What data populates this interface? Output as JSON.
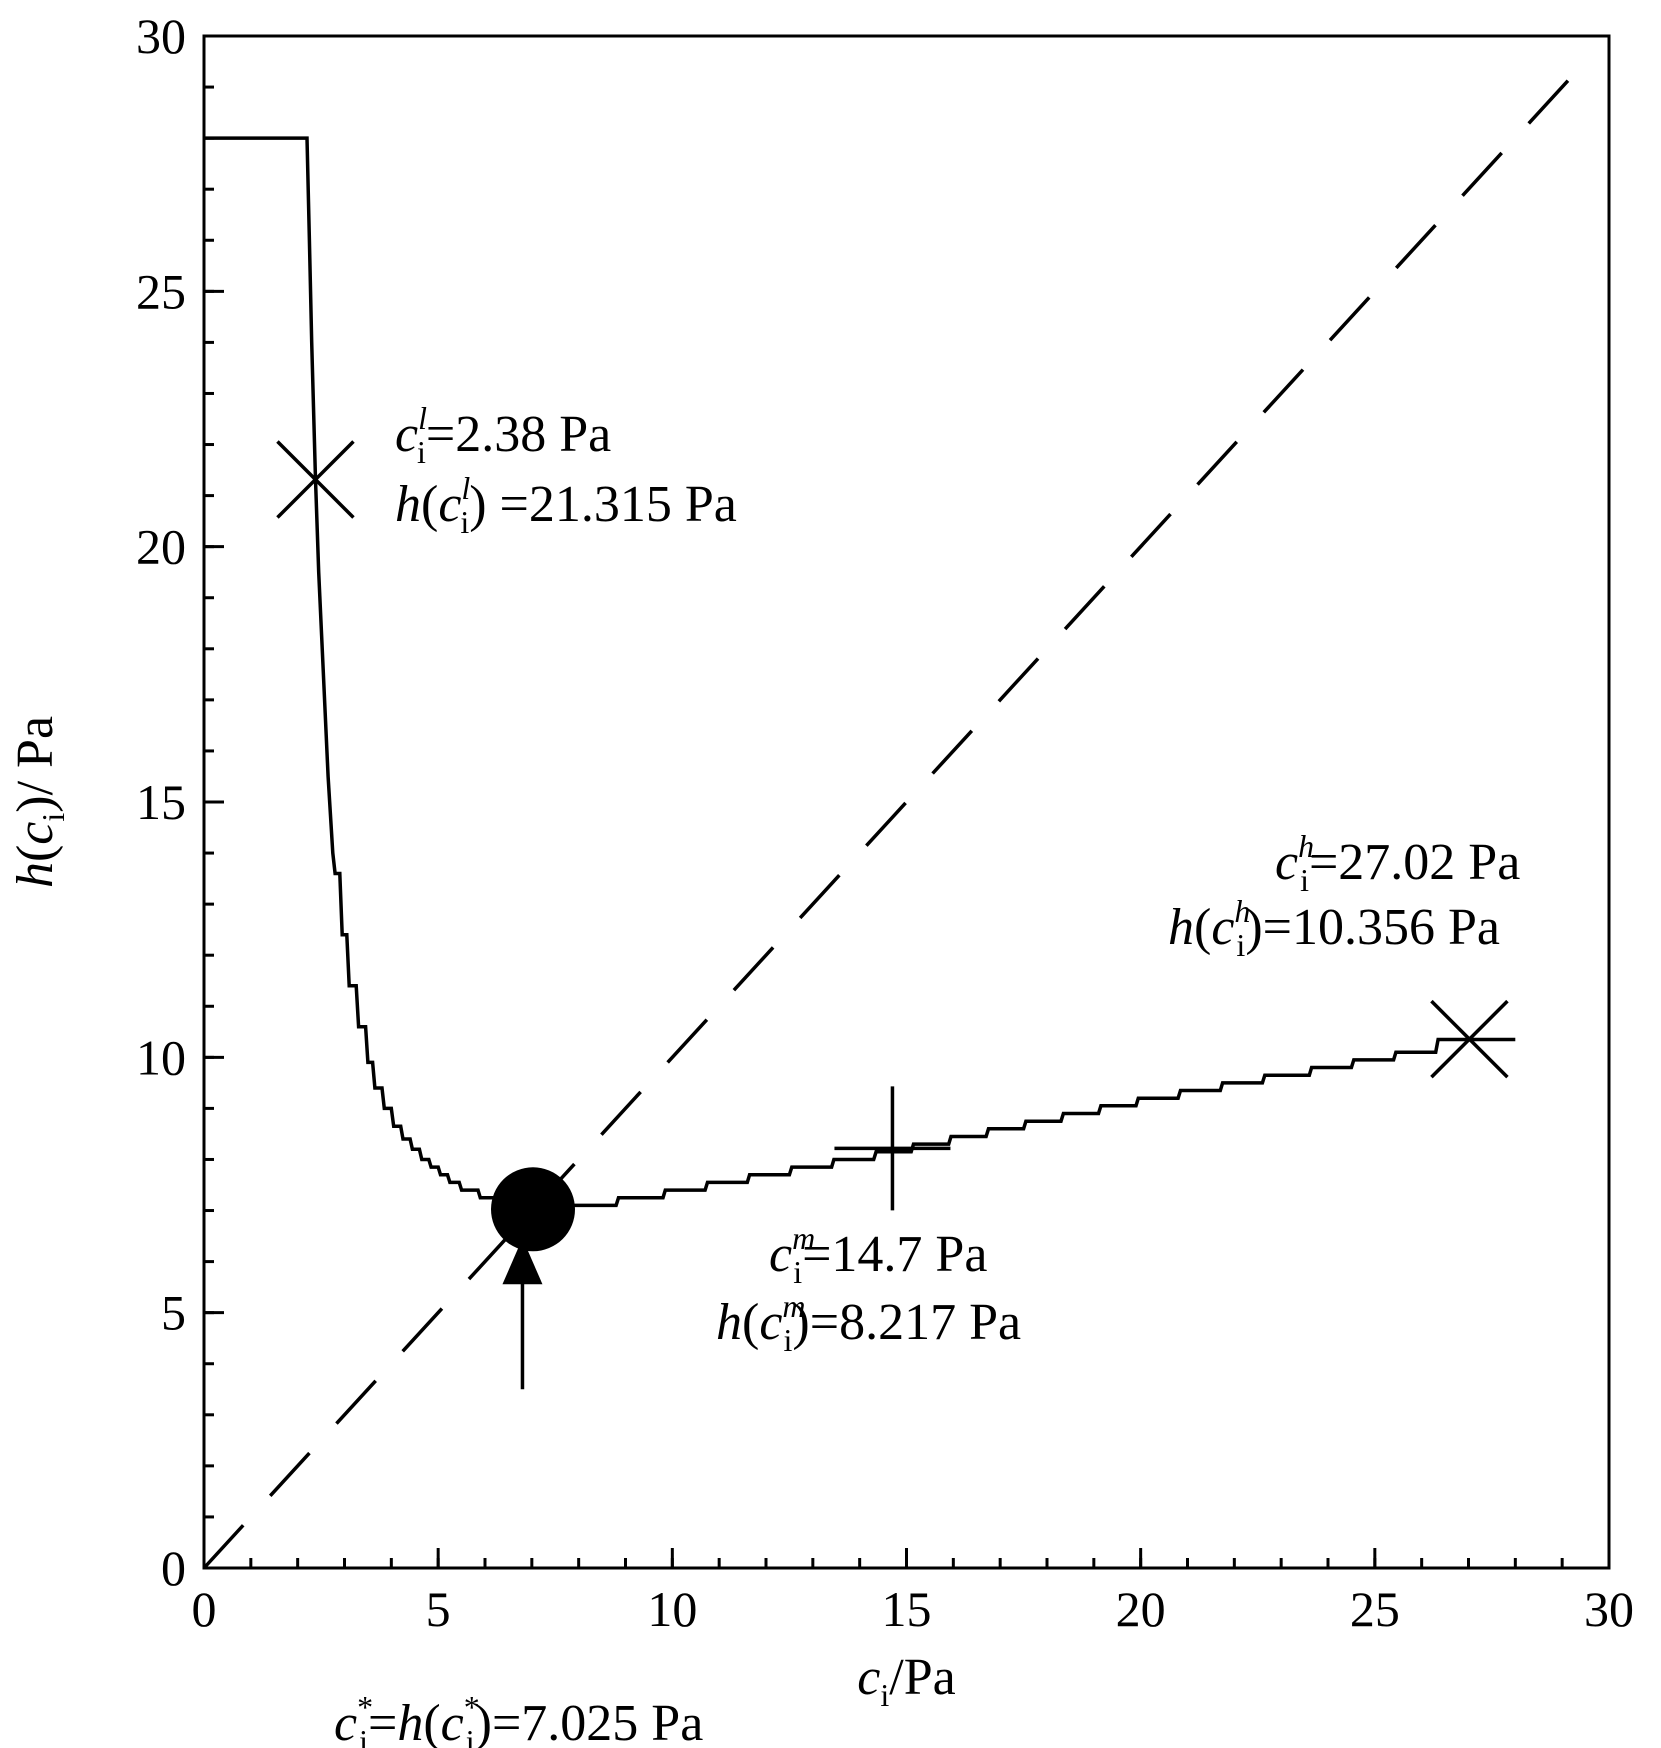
{
  "chart_data": {
    "type": "line",
    "title": "",
    "xlabel": {
      "var": "c",
      "sub": "i",
      "unit": "/Pa"
    },
    "ylabel": {
      "fn": "h",
      "var": "c",
      "sub": "i",
      "unit": "/ Pa"
    },
    "xlim": [
      0,
      30
    ],
    "ylim": [
      0,
      30
    ],
    "xticks": [
      0,
      5,
      10,
      15,
      20,
      25,
      30
    ],
    "yticks": [
      0,
      5,
      10,
      15,
      20,
      25,
      30
    ],
    "minor_tick_step": 1,
    "series": [
      {
        "name": "h(ci)",
        "style": "solid",
        "color": "#000000",
        "points": [
          [
            0,
            28.0
          ],
          [
            2.2,
            28.0
          ],
          [
            2.25,
            26.0
          ],
          [
            2.3,
            24.0
          ],
          [
            2.38,
            21.315
          ],
          [
            2.45,
            19.5
          ],
          [
            2.55,
            17.5
          ],
          [
            2.65,
            15.5
          ],
          [
            2.75,
            14.0
          ],
          [
            2.8,
            13.6
          ],
          [
            2.9,
            13.6
          ],
          [
            2.95,
            12.4
          ],
          [
            3.05,
            12.4
          ],
          [
            3.1,
            11.4
          ],
          [
            3.25,
            11.4
          ],
          [
            3.3,
            10.6
          ],
          [
            3.45,
            10.6
          ],
          [
            3.5,
            9.9
          ],
          [
            3.6,
            9.9
          ],
          [
            3.65,
            9.4
          ],
          [
            3.8,
            9.4
          ],
          [
            3.85,
            9.0
          ],
          [
            4.0,
            9.0
          ],
          [
            4.05,
            8.65
          ],
          [
            4.2,
            8.65
          ],
          [
            4.25,
            8.4
          ],
          [
            4.4,
            8.4
          ],
          [
            4.45,
            8.2
          ],
          [
            4.6,
            8.2
          ],
          [
            4.65,
            8.0
          ],
          [
            4.8,
            8.0
          ],
          [
            4.85,
            7.85
          ],
          [
            5.0,
            7.85
          ],
          [
            5.05,
            7.7
          ],
          [
            5.2,
            7.7
          ],
          [
            5.25,
            7.55
          ],
          [
            5.45,
            7.55
          ],
          [
            5.5,
            7.4
          ],
          [
            5.85,
            7.4
          ],
          [
            5.9,
            7.25
          ],
          [
            6.2,
            7.25
          ],
          [
            6.25,
            7.1
          ],
          [
            8.8,
            7.1
          ],
          [
            8.85,
            7.25
          ],
          [
            9.8,
            7.25
          ],
          [
            9.85,
            7.4
          ],
          [
            10.7,
            7.4
          ],
          [
            10.75,
            7.55
          ],
          [
            11.6,
            7.55
          ],
          [
            11.65,
            7.7
          ],
          [
            12.5,
            7.7
          ],
          [
            12.55,
            7.85
          ],
          [
            13.4,
            7.85
          ],
          [
            13.45,
            8.0
          ],
          [
            14.3,
            8.0
          ],
          [
            14.35,
            8.15
          ],
          [
            15.1,
            8.15
          ],
          [
            15.15,
            8.3
          ],
          [
            15.9,
            8.3
          ],
          [
            15.95,
            8.45
          ],
          [
            16.7,
            8.45
          ],
          [
            16.75,
            8.6
          ],
          [
            17.5,
            8.6
          ],
          [
            17.55,
            8.75
          ],
          [
            18.3,
            8.75
          ],
          [
            18.35,
            8.9
          ],
          [
            19.1,
            8.9
          ],
          [
            19.15,
            9.05
          ],
          [
            19.9,
            9.05
          ],
          [
            19.95,
            9.2
          ],
          [
            20.8,
            9.2
          ],
          [
            20.85,
            9.35
          ],
          [
            21.7,
            9.35
          ],
          [
            21.75,
            9.5
          ],
          [
            22.6,
            9.5
          ],
          [
            22.65,
            9.65
          ],
          [
            23.6,
            9.65
          ],
          [
            23.65,
            9.8
          ],
          [
            24.5,
            9.8
          ],
          [
            24.55,
            9.95
          ],
          [
            25.4,
            9.95
          ],
          [
            25.45,
            10.1
          ],
          [
            26.3,
            10.1
          ],
          [
            26.35,
            10.35
          ],
          [
            28.0,
            10.35
          ]
        ]
      },
      {
        "name": "y = x",
        "style": "dashed",
        "color": "#000000",
        "points": [
          [
            0,
            0
          ],
          [
            29.3,
            29.3
          ]
        ]
      }
    ],
    "markers": [
      {
        "name": "low-point",
        "shape": "x",
        "x": 2.38,
        "y": 21.315
      },
      {
        "name": "high-point",
        "shape": "x",
        "x": 27.02,
        "y": 10.356
      },
      {
        "name": "mid-point",
        "shape": "plus",
        "x": 14.7,
        "y": 8.217
      },
      {
        "name": "fixed-point",
        "shape": "circle",
        "x": 7.025,
        "y": 7.025
      }
    ],
    "arrow": {
      "from": [
        6.8,
        3.5
      ],
      "to": [
        6.8,
        6.3
      ]
    },
    "annotations": {
      "low": {
        "line1": {
          "var": "c",
          "sub": "i",
          "sup": "l",
          "rest": "=2.38 Pa"
        },
        "line2": {
          "fn": "h",
          "var": "c",
          "sub": "i",
          "sup": "l",
          "rest": ") =21.315 Pa"
        }
      },
      "high": {
        "line1": {
          "var": "c",
          "sub": "i",
          "sup": "h",
          "rest": "=27.02 Pa"
        },
        "line2": {
          "fn": "h",
          "var": "c",
          "sub": "i",
          "sup": "h",
          "rest": ")=10.356 Pa"
        }
      },
      "mid": {
        "line1": {
          "var": "c",
          "sub": "i",
          "sup": "m",
          "rest": "=14.7 Pa"
        },
        "line2": {
          "fn": "h",
          "var": "c",
          "sub": "i",
          "sup": "m",
          "rest": ")=8.217 Pa"
        }
      },
      "fixed": {
        "var": "c",
        "sub": "i",
        "sup": "*",
        "eq": "=",
        "fn": "h",
        "rest": ")=7.025 Pa"
      }
    }
  }
}
